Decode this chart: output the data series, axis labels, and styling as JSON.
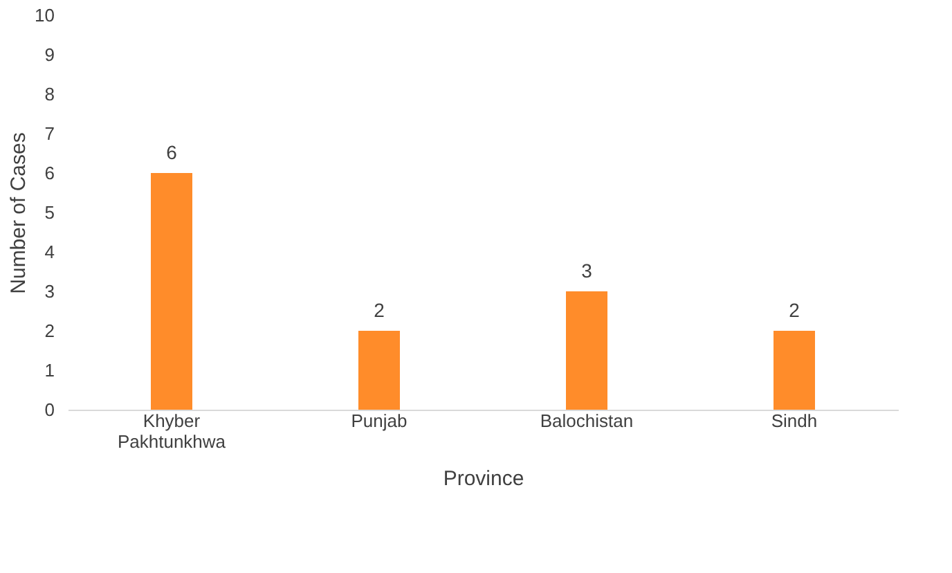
{
  "chart_data": {
    "type": "bar",
    "xlabel": "Province",
    "ylabel": "Number of Cases",
    "categories": [
      "Khyber Pakhtunkhwa",
      "Punjab",
      "Balochistan",
      "Sindh"
    ],
    "values": [
      6,
      2,
      3,
      2
    ],
    "color": "#ff8c2a",
    "ylim": [
      0,
      10
    ],
    "yticks": [
      0,
      1,
      2,
      3,
      4,
      5,
      6,
      7,
      8,
      9,
      10
    ],
    "grid": false,
    "data_labels": true
  }
}
